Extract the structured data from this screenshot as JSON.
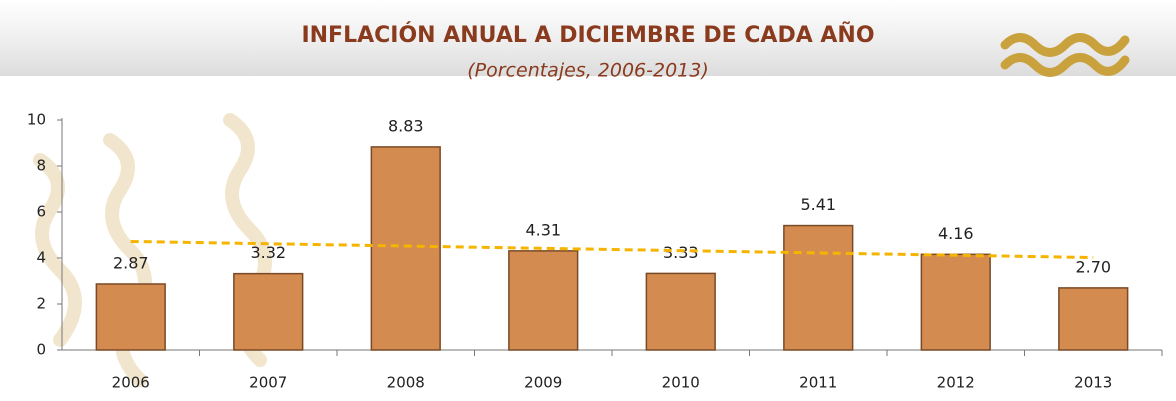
{
  "chart_data": {
    "type": "bar",
    "title": "INFLACIÓN ANUAL A DICIEMBRE DE CADA AÑO",
    "subtitle": "(Porcentajes, 2006-2013)",
    "categories": [
      "2006",
      "2007",
      "2008",
      "2009",
      "2010",
      "2011",
      "2012",
      "2013"
    ],
    "values": [
      2.87,
      3.32,
      8.83,
      4.31,
      3.33,
      5.41,
      4.16,
      2.7
    ],
    "value_labels": [
      "2.87",
      "3.32",
      "8.83",
      "4.31",
      "3.33",
      "5.41",
      "4.16",
      "2.70"
    ],
    "color": "#d38b50",
    "ylim": [
      0,
      10
    ],
    "yticks": [
      0,
      2,
      4,
      6,
      8,
      10
    ],
    "trendline": {
      "values": [
        4.72,
        4.02
      ],
      "color": "#f5b400"
    }
  }
}
